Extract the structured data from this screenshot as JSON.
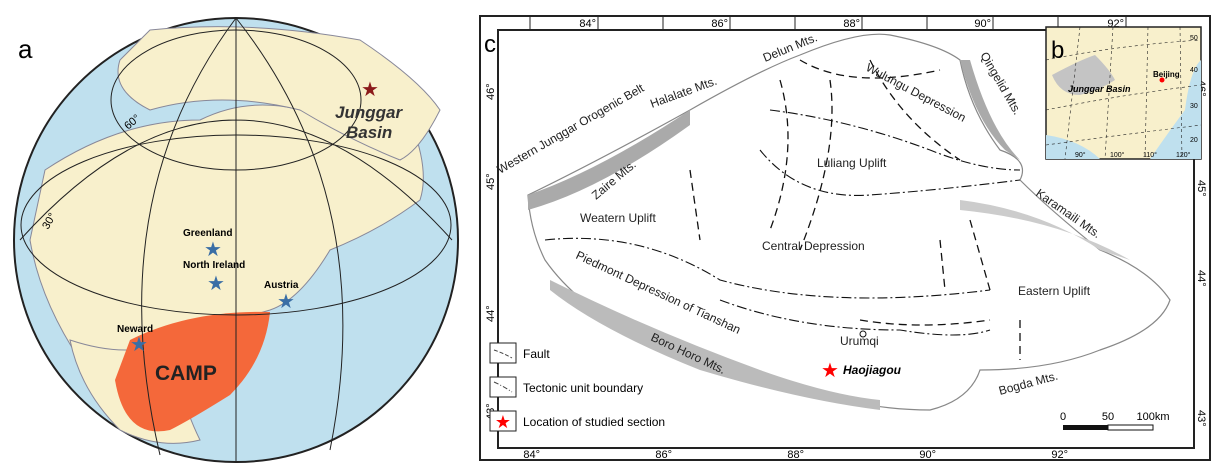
{
  "panel_a": {
    "label": "a",
    "lat_labels": [
      "60°",
      "30°"
    ],
    "basin_label_1": "Junggar",
    "basin_label_2": "Basin",
    "sites": [
      "Greenland",
      "North Ireland",
      "Austria",
      "Neward"
    ],
    "camp_label": "CAMP",
    "colors": {
      "ocean": "#bfe0ee",
      "land": "#f8f0cc",
      "camp": "#f4683a",
      "site_star": "#3a6ea5",
      "basin_star": "#8b1a1a"
    }
  },
  "panel_b": {
    "label": "b",
    "basin_label": "Junggar Basin",
    "city_label": "Beijing",
    "lon_labels": [
      "90°",
      "100°",
      "110°",
      "120°"
    ],
    "lat_labels": [
      "50",
      "40",
      "30",
      "20"
    ]
  },
  "panel_c": {
    "label": "c",
    "top_lon_labels": [
      "84°",
      "86°",
      "88°",
      "90°",
      "92°"
    ],
    "bottom_lon_labels": [
      "84°",
      "86°",
      "88°",
      "90°",
      "92°"
    ],
    "left_lat_labels": [
      "46°",
      "45°",
      "44°",
      "43°"
    ],
    "right_lat_labels": [
      "46°",
      "45°",
      "44°",
      "43°"
    ],
    "mountains": [
      "Western Junggar Orogenic Belt",
      "Halalate Mts.",
      "Delun Mts.",
      "Zaire Mts.",
      "Qingelid Mts.",
      "Karamaili Mts.",
      "Boro Horo Mts.",
      "Bogda Mts."
    ],
    "units": [
      "Wulungu Depression",
      "Luliang Uplift",
      "Weatern Uplift",
      "Central Depression",
      "Eastern Uplift",
      "Piedmont Depression of Tianshan"
    ],
    "city": "Urumqi",
    "section": "Haojiagou",
    "legend": [
      "Fault",
      "Tectonic unit boundary",
      "Location of studied section"
    ],
    "scale_labels": [
      "0",
      "50",
      "100km"
    ],
    "star_color": "#ff0000"
  }
}
